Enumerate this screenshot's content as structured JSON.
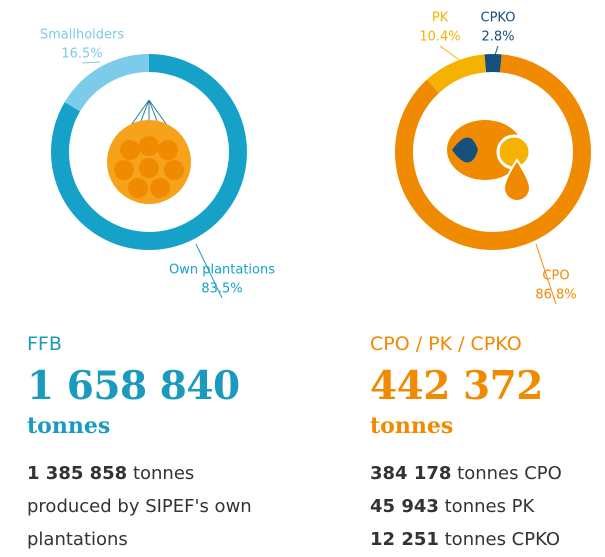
{
  "chart_data": [
    {
      "type": "donut",
      "categories": [
        "Own plantations",
        "Smallholders"
      ],
      "values": [
        83.5,
        16.5
      ],
      "value_labels": [
        "83.5%",
        "16.5%"
      ],
      "colors": [
        "#16a2c8",
        "#7ccbe8"
      ]
    },
    {
      "type": "donut",
      "categories": [
        "CPKO",
        "CPO",
        "PK"
      ],
      "values": [
        2.8,
        86.8,
        10.4
      ],
      "value_labels": [
        "2.8%",
        "86.8%",
        "10.4%"
      ],
      "colors": [
        "#16507e",
        "#f08a00",
        "#f6b200"
      ]
    }
  ],
  "panels": [
    {
      "label": "FFB",
      "total": "1 658 840",
      "unit": "tonnes",
      "details": [
        {
          "bold": "1 385 858",
          "text": "tonnes produced by SIPEF's own plantations"
        }
      ]
    },
    {
      "label": "CPO / PK / CPKO",
      "total": "442 372",
      "unit": "tonnes",
      "details": [
        {
          "bold": "384 178",
          "text": "tonnes CPO"
        },
        {
          "bold": "45 943",
          "text": "tonnes PK"
        },
        {
          "bold": "12 251",
          "text": "tonnes CPKO"
        }
      ]
    }
  ]
}
